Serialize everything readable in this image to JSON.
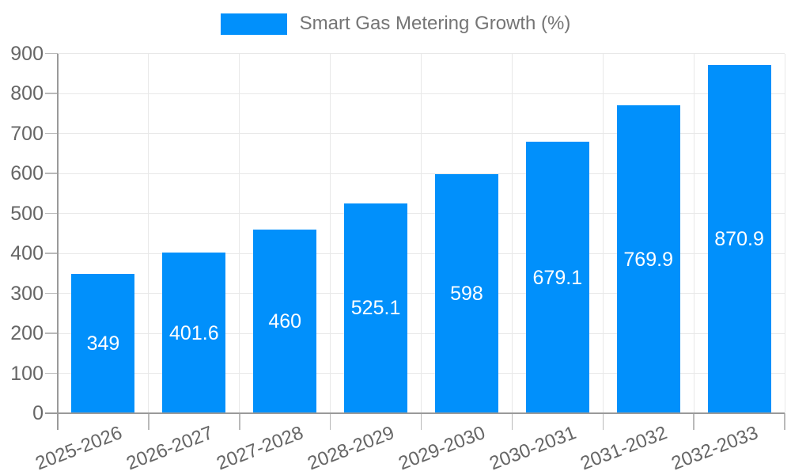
{
  "chart_data": {
    "type": "bar",
    "title": "",
    "xlabel": "",
    "ylabel": "",
    "legend_position": "top-center",
    "grid": true,
    "categories": [
      "2025-2026",
      "2026-2027",
      "2027-2028",
      "2028-2029",
      "2029-2030",
      "2030-2031",
      "2031-2032",
      "2032-2033"
    ],
    "series": [
      {
        "name": "Smart Gas Metering Growth (%)",
        "values": [
          349,
          401.6,
          460,
          525.1,
          598,
          679.1,
          769.9,
          870.9
        ]
      }
    ],
    "bar_value_labels": [
      "349",
      "401.6",
      "460",
      "525.1",
      "598",
      "679.1",
      "769.9",
      "870.9"
    ],
    "ylim": [
      0,
      900
    ],
    "ytick_step": 100,
    "ytick_labels": [
      "0",
      "100",
      "200",
      "300",
      "400",
      "500",
      "600",
      "700",
      "800",
      "900"
    ],
    "colors": {
      "bar": "#0190fb",
      "bar_label": "#ffffff",
      "axis_label": "#666666",
      "legend_text": "#757575",
      "grid_line": "#e8e8e8",
      "axis_line": "#9a9a9a",
      "tick": "#b9b9b9",
      "background": "#ffffff"
    }
  }
}
